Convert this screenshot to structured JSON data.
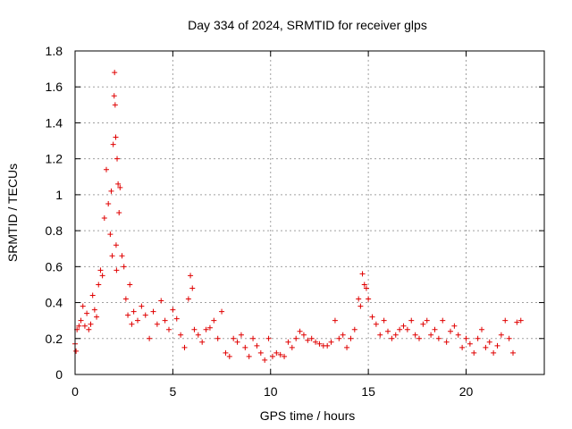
{
  "chart_data": {
    "type": "scatter",
    "title": "Day 334 of 2024, SRMTID for receiver glps",
    "xlabel": "GPS time / hours",
    "ylabel": "SRMTID / TECUs",
    "xlim": [
      0,
      24
    ],
    "ylim": [
      0,
      1.8
    ],
    "xticks": [
      0,
      5,
      10,
      15,
      20
    ],
    "xtick_labels": [
      "0",
      "5",
      "10",
      "15",
      "20"
    ],
    "yticks": [
      0,
      0.2,
      0.4,
      0.6,
      0.8,
      1,
      1.2,
      1.4,
      1.6,
      1.8
    ],
    "ytick_labels": [
      "0",
      "0.2",
      "0.4",
      "0.6",
      "0.8",
      "1",
      "1.2",
      "1.4",
      "1.6",
      "1.8"
    ],
    "grid": true,
    "marker": "plus",
    "color": "#e00000",
    "series": [
      {
        "name": "SRMTID",
        "x": [
          0.0,
          0.05,
          0.1,
          0.2,
          0.3,
          0.4,
          0.5,
          0.6,
          0.7,
          0.8,
          0.9,
          1.0,
          1.1,
          1.2,
          1.3,
          1.4,
          1.5,
          1.6,
          1.7,
          1.8,
          1.85,
          1.9,
          1.95,
          2.0,
          2.02,
          2.05,
          2.08,
          2.1,
          2.12,
          2.15,
          2.2,
          2.25,
          2.3,
          2.4,
          2.5,
          2.6,
          2.7,
          2.8,
          2.9,
          3.0,
          3.2,
          3.4,
          3.6,
          3.8,
          4.0,
          4.2,
          4.4,
          4.6,
          4.8,
          5.0,
          5.2,
          5.4,
          5.6,
          5.8,
          5.9,
          6.0,
          6.1,
          6.3,
          6.5,
          6.7,
          6.9,
          7.1,
          7.3,
          7.5,
          7.7,
          7.9,
          8.1,
          8.3,
          8.5,
          8.7,
          8.9,
          9.1,
          9.3,
          9.5,
          9.7,
          9.9,
          10.1,
          10.3,
          10.5,
          10.7,
          10.9,
          11.1,
          11.3,
          11.5,
          11.7,
          11.9,
          12.1,
          12.3,
          12.5,
          12.7,
          12.9,
          13.1,
          13.3,
          13.5,
          13.7,
          13.9,
          14.1,
          14.3,
          14.5,
          14.6,
          14.7,
          14.8,
          14.9,
          15.0,
          15.2,
          15.4,
          15.6,
          15.8,
          16.0,
          16.2,
          16.4,
          16.6,
          16.8,
          17.0,
          17.2,
          17.4,
          17.6,
          17.8,
          18.0,
          18.2,
          18.4,
          18.6,
          18.8,
          19.0,
          19.2,
          19.4,
          19.6,
          19.8,
          20.0,
          20.2,
          20.4,
          20.6,
          20.8,
          21.0,
          21.2,
          21.4,
          21.6,
          21.8,
          22.0,
          22.2,
          22.4,
          22.6,
          22.8
        ],
        "y": [
          0.17,
          0.13,
          0.25,
          0.27,
          0.3,
          0.38,
          0.27,
          0.34,
          0.25,
          0.28,
          0.44,
          0.36,
          0.32,
          0.5,
          0.58,
          0.55,
          0.87,
          1.14,
          0.95,
          0.78,
          1.02,
          0.66,
          1.28,
          1.55,
          1.68,
          1.5,
          1.32,
          0.72,
          0.58,
          1.2,
          1.06,
          0.9,
          1.04,
          0.66,
          0.6,
          0.42,
          0.33,
          0.5,
          0.28,
          0.35,
          0.3,
          0.38,
          0.33,
          0.2,
          0.35,
          0.28,
          0.41,
          0.3,
          0.25,
          0.36,
          0.31,
          0.22,
          0.15,
          0.42,
          0.55,
          0.48,
          0.25,
          0.22,
          0.18,
          0.25,
          0.26,
          0.3,
          0.2,
          0.35,
          0.12,
          0.1,
          0.2,
          0.18,
          0.22,
          0.15,
          0.1,
          0.2,
          0.16,
          0.12,
          0.08,
          0.2,
          0.1,
          0.12,
          0.11,
          0.1,
          0.18,
          0.15,
          0.2,
          0.24,
          0.22,
          0.19,
          0.2,
          0.18,
          0.17,
          0.16,
          0.16,
          0.18,
          0.3,
          0.2,
          0.22,
          0.15,
          0.2,
          0.25,
          0.42,
          0.38,
          0.56,
          0.5,
          0.48,
          0.42,
          0.32,
          0.28,
          0.22,
          0.3,
          0.24,
          0.2,
          0.22,
          0.25,
          0.27,
          0.25,
          0.3,
          0.22,
          0.2,
          0.28,
          0.3,
          0.22,
          0.25,
          0.2,
          0.3,
          0.18,
          0.24,
          0.27,
          0.22,
          0.15,
          0.2,
          0.17,
          0.12,
          0.2,
          0.25,
          0.15,
          0.18,
          0.12,
          0.16,
          0.22,
          0.3,
          0.2,
          0.12,
          0.29,
          0.3
        ]
      }
    ]
  }
}
